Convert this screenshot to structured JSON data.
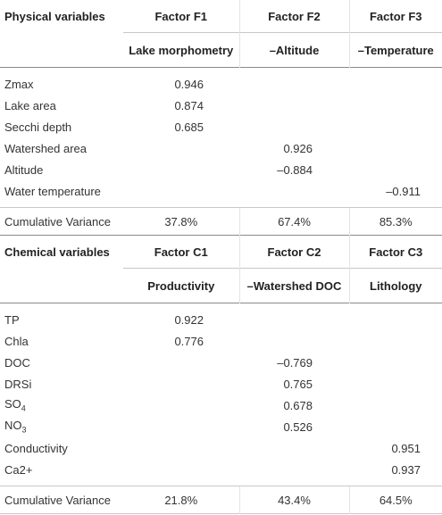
{
  "physical": {
    "header": {
      "var": "Physical variables",
      "f1": "Factor F1",
      "f2": "Factor F2",
      "f3": "Factor F3"
    },
    "sub": {
      "f1": "Lake morphometry",
      "f2": "–Altitude",
      "f3": "–Temperature"
    },
    "rows": [
      {
        "label": "Zmax",
        "f1": "0.946",
        "f2": "",
        "f3": ""
      },
      {
        "label": "Lake area",
        "f1": "0.874",
        "f2": "",
        "f3": ""
      },
      {
        "label": "Secchi depth",
        "f1": "0.685",
        "f2": "",
        "f3": ""
      },
      {
        "label": "Watershed area",
        "f1": "",
        "f2": "0.926",
        "f3": ""
      },
      {
        "label": "Altitude",
        "f1": "",
        "f2": "–0.884",
        "f3": ""
      },
      {
        "label": "Water temperature",
        "f1": "",
        "f2": "",
        "f3": "–0.911"
      }
    ],
    "cumulative": {
      "label": "Cumulative Variance",
      "f1": "37.8%",
      "f2": "67.4%",
      "f3": "85.3%"
    }
  },
  "chemical": {
    "header": {
      "var": "Chemical variables",
      "f1": "Factor C1",
      "f2": "Factor C2",
      "f3": "Factor C3"
    },
    "sub": {
      "f1": "Productivity",
      "f2": "–Watershed DOC",
      "f3": "Lithology"
    },
    "rows": [
      {
        "label": "TP",
        "sub": "",
        "f1": "0.922",
        "f2": "",
        "f3": ""
      },
      {
        "label": "Chla",
        "sub": "",
        "f1": "0.776",
        "f2": "",
        "f3": ""
      },
      {
        "label": "DOC",
        "sub": "",
        "f1": "",
        "f2": "–0.769",
        "f3": ""
      },
      {
        "label": "DRSi",
        "sub": "",
        "f1": "",
        "f2": "0.765",
        "f3": ""
      },
      {
        "label": "SO",
        "sub": "4",
        "f1": "",
        "f2": "0.678",
        "f3": ""
      },
      {
        "label": "NO",
        "sub": "3",
        "f1": "",
        "f2": "0.526",
        "f3": ""
      },
      {
        "label": "Conductivity",
        "sub": "",
        "f1": "",
        "f2": "",
        "f3": "0.951"
      },
      {
        "label": "Ca2+",
        "sub": "",
        "f1": "",
        "f2": "",
        "f3": "0.937"
      }
    ],
    "cumulative": {
      "label": "Cumulative Variance",
      "f1": "21.8%",
      "f2": "43.4%",
      "f3": "64.5%"
    }
  }
}
